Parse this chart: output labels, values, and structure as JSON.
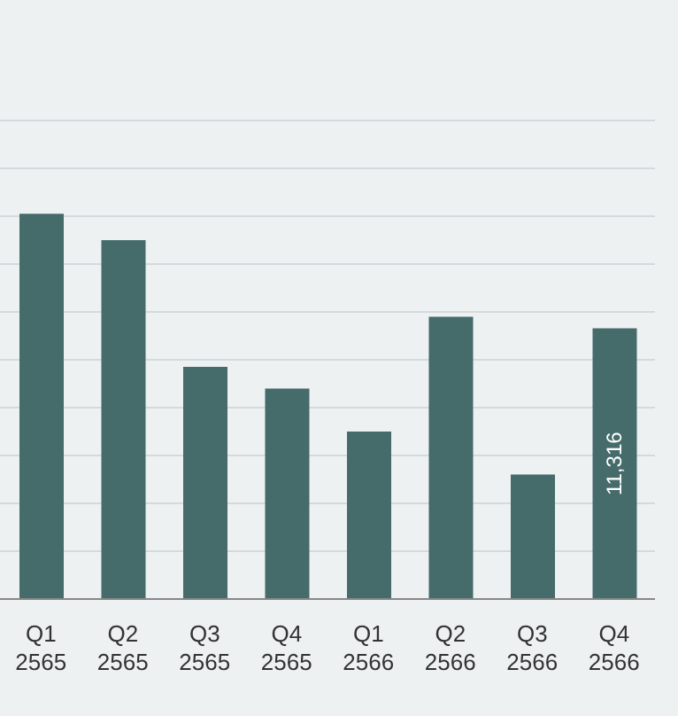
{
  "chart_data": {
    "type": "bar",
    "categories": [
      "Q1\n2565",
      "Q2\n2565",
      "Q3\n2565",
      "Q4\n2565",
      "Q1\n2566",
      "Q2\n2566",
      "Q3\n2566",
      "Q4\n2566"
    ],
    "values": [
      16100,
      15000,
      9700,
      8800,
      7000,
      11800,
      5200,
      11316
    ],
    "value_labels": [
      null,
      null,
      null,
      null,
      null,
      null,
      null,
      "11,316"
    ],
    "color": "#456b6a",
    "ylim": [
      0,
      20000
    ],
    "yticks": [
      {
        "value": 0,
        "label": null
      },
      {
        "value": 2000,
        "label": null
      },
      {
        "value": 4000,
        "label": null
      },
      {
        "value": 6000,
        "label": null
      },
      {
        "value": 8000,
        "label": null
      },
      {
        "value": 10000,
        "label": null
      },
      {
        "value": 12000,
        "label": null
      },
      {
        "value": 14000,
        "label": null
      },
      {
        "value": 16000,
        "label": null
      },
      {
        "value": 18000,
        "label": null
      },
      {
        "value": 20000,
        "label": null
      }
    ],
    "tick_labels": "x",
    "grid": "y"
  }
}
